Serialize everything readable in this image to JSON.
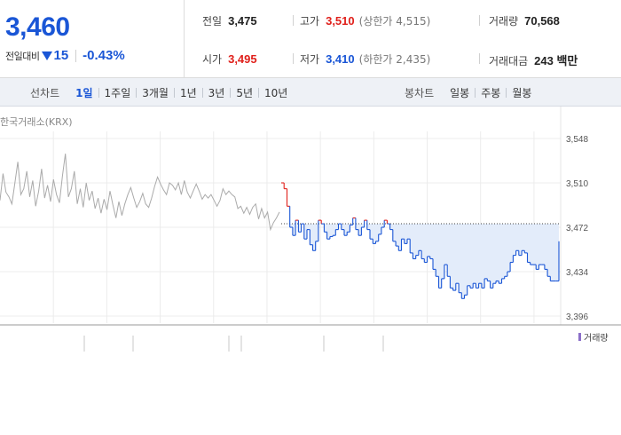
{
  "quote": {
    "price": "3,460",
    "change_label": "전일대비",
    "change_icon": "down-triangle-icon",
    "change_value": "15",
    "change_rate": "-0.43%"
  },
  "metrics": {
    "prev_label": "전일",
    "prev_value": "3,475",
    "high_label": "고가",
    "high_value": "3,510",
    "upper_limit": "(상한가 4,515)",
    "volume_label": "거래량",
    "volume_value": "70,568",
    "open_label": "시가",
    "open_value": "3,495",
    "low_label": "저가",
    "low_value": "3,410",
    "lower_limit": "(하한가 2,435)",
    "amount_label": "거래대금",
    "amount_value": "243 백만"
  },
  "tabbar": {
    "line_title": "선차트",
    "line_tabs": [
      "1일",
      "1주일",
      "3개월",
      "1년",
      "3년",
      "5년",
      "10년"
    ],
    "candle_title": "봉차트",
    "candle_tabs": [
      "일봉",
      "주봉",
      "월봉"
    ],
    "active": "1일"
  },
  "chart": {
    "source": "한국거래소(KRX)",
    "volume_legend": "거래량"
  },
  "chart_data": {
    "type": "line",
    "ylim": [
      3396,
      3548
    ],
    "y_ticks": [
      "3,548",
      "3,510",
      "3,472",
      "3,434",
      "3,396"
    ],
    "reference": 3475,
    "colors": {
      "pre_market": "#aaaaaa",
      "up": "#e0201b",
      "down": "#1a56d6",
      "fill": "#e3ecfa"
    },
    "pre_market": [
      3495,
      3518,
      3502,
      3498,
      3492,
      3510,
      3528,
      3500,
      3505,
      3520,
      3498,
      3512,
      3490,
      3503,
      3522,
      3497,
      3508,
      3494,
      3513,
      3500,
      3493,
      3516,
      3535,
      3498,
      3505,
      3520,
      3492,
      3505,
      3489,
      3510,
      3495,
      3503,
      3488,
      3497,
      3484,
      3496,
      3487,
      3503,
      3491,
      3480,
      3494,
      3482,
      3492,
      3500,
      3506,
      3497,
      3489,
      3494,
      3501,
      3492,
      3489,
      3497,
      3507,
      3515,
      3509,
      3504,
      3500,
      3510,
      3508,
      3504,
      3510,
      3500,
      3512,
      3502,
      3497,
      3503,
      3509,
      3503,
      3496,
      3500,
      3497,
      3500,
      3495,
      3490,
      3495,
      3505,
      3500,
      3503,
      3500,
      3498,
      3488,
      3490,
      3484,
      3489,
      3483,
      3489,
      3492,
      3479,
      3488,
      3480,
      3485,
      3470,
      3476,
      3480,
      3485
    ],
    "regular": [
      3510,
      3505,
      3490,
      3472,
      3465,
      3478,
      3468,
      3475,
      3462,
      3470,
      3457,
      3452,
      3460,
      3478,
      3475,
      3468,
      3462,
      3464,
      3465,
      3470,
      3475,
      3470,
      3465,
      3468,
      3474,
      3480,
      3470,
      3465,
      3472,
      3478,
      3470,
      3462,
      3458,
      3460,
      3466,
      3472,
      3478,
      3475,
      3470,
      3460,
      3456,
      3452,
      3462,
      3458,
      3462,
      3450,
      3445,
      3448,
      3452,
      3445,
      3442,
      3447,
      3445,
      3436,
      3430,
      3420,
      3428,
      3440,
      3430,
      3420,
      3418,
      3424,
      3416,
      3411,
      3414,
      3422,
      3420,
      3424,
      3420,
      3424,
      3420,
      3428,
      3426,
      3420,
      3424,
      3426,
      3424,
      3428,
      3430,
      3434,
      3442,
      3448,
      3452,
      3448,
      3452,
      3450,
      3442,
      3440,
      3440,
      3436,
      3440,
      3440,
      3436,
      3430,
      3426,
      3426,
      3426,
      3460
    ]
  }
}
